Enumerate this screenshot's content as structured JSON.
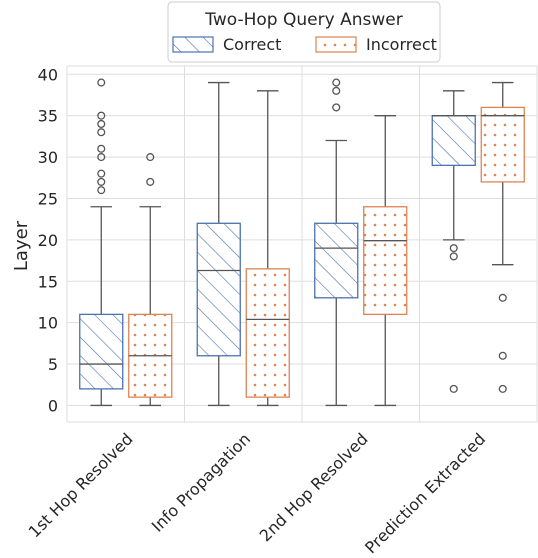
{
  "chart_data": {
    "type": "boxplot",
    "categories": [
      "1st Hop Resolved",
      "Info Propagation",
      "2nd Hop Resolved",
      "Prediction Extracted"
    ],
    "ylabel": "Layer",
    "xlabel": "",
    "ylim": [
      -2,
      41
    ],
    "yticks": [
      0,
      5,
      10,
      15,
      20,
      25,
      30,
      35,
      40
    ],
    "grid": true,
    "legend": {
      "title": "Two-Hop Query Answer",
      "placement": "top-center"
    },
    "series": [
      {
        "name": "Correct",
        "pattern": "diagonal-hatch",
        "color": "#4C72B0",
        "boxes": [
          {
            "whisker_low": 0,
            "q1": 2,
            "median": 5,
            "q3": 11,
            "whisker_high": 24,
            "outliers": [
              26,
              27,
              28,
              30,
              31,
              33,
              34,
              35,
              39
            ]
          },
          {
            "whisker_low": 0,
            "q1": 6,
            "median": 16.3,
            "q3": 22,
            "whisker_high": 39,
            "outliers": []
          },
          {
            "whisker_low": 0,
            "q1": 13,
            "median": 19,
            "q3": 22,
            "whisker_high": 32,
            "outliers": [
              36,
              38,
              39
            ]
          },
          {
            "whisker_low": 20,
            "q1": 29,
            "median": 35,
            "q3": 35,
            "whisker_high": 38,
            "outliers": [
              2,
              18,
              19
            ]
          }
        ]
      },
      {
        "name": "Incorrect",
        "pattern": "dots",
        "color": "#DD8452",
        "boxes": [
          {
            "whisker_low": 0,
            "q1": 1,
            "median": 6,
            "q3": 11,
            "whisker_high": 24,
            "outliers": [
              27,
              30
            ]
          },
          {
            "whisker_low": 0,
            "q1": 1,
            "median": 10.4,
            "q3": 16.5,
            "whisker_high": 38,
            "outliers": []
          },
          {
            "whisker_low": 0,
            "q1": 11,
            "median": 19.9,
            "q3": 24,
            "whisker_high": 35,
            "outliers": []
          },
          {
            "whisker_low": 17,
            "q1": 27,
            "median": 35,
            "q3": 36,
            "whisker_high": 39,
            "outliers": [
              2,
              6,
              13
            ]
          }
        ]
      }
    ]
  }
}
